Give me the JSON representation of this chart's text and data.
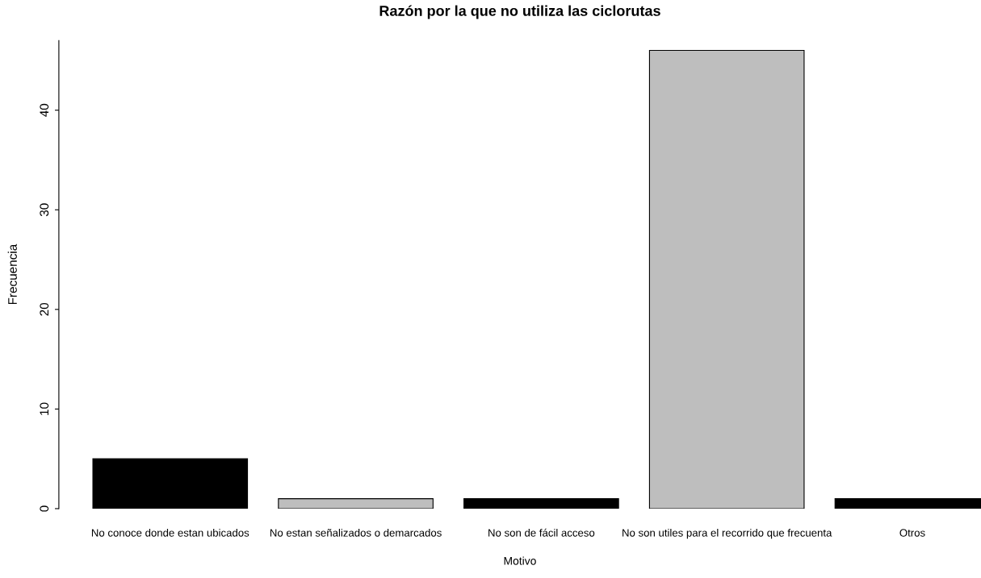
{
  "chart_data": {
    "type": "bar",
    "title": "Razón por la que no utiliza las ciclorutas",
    "xlabel": "Motivo",
    "ylabel": "Frecuencia",
    "categories": [
      "No conoce donde estan ubicados",
      "No estan señalizados o demarcados",
      "No son de fácil acceso",
      "No son utiles para el recorrido que frecuenta",
      "Otros"
    ],
    "values": [
      5,
      1,
      1,
      46,
      1
    ],
    "colors": [
      "#000000",
      "#bebebe",
      "#000000",
      "#bebebe",
      "#000000"
    ],
    "ylim": [
      0,
      47
    ],
    "yticks": [
      0,
      10,
      20,
      30,
      40
    ],
    "grid": false,
    "legend": false
  }
}
